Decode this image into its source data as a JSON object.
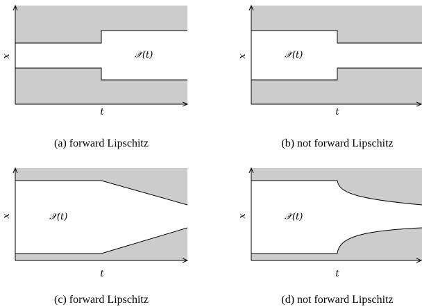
{
  "panels": [
    {
      "id": "a",
      "caption": "(a) forward Lipschitz",
      "set_label": "𝒳(t)",
      "x_label": "x",
      "t_label": "t"
    },
    {
      "id": "b",
      "caption": "(b) not forward Lipschitz",
      "set_label": "𝒳(t)",
      "x_label": "x",
      "t_label": "t"
    },
    {
      "id": "c",
      "caption": "(c) forward Lipschitz",
      "set_label": "𝒳(t)",
      "x_label": "x",
      "t_label": "t"
    },
    {
      "id": "d",
      "caption": "(d) not forward Lipschitz",
      "set_label": "𝒳(t)",
      "x_label": "x",
      "t_label": "t"
    }
  ],
  "colors": {
    "excluded_region": "#cccccc",
    "feasible_region": "#ffffff",
    "axis": "#000000"
  }
}
